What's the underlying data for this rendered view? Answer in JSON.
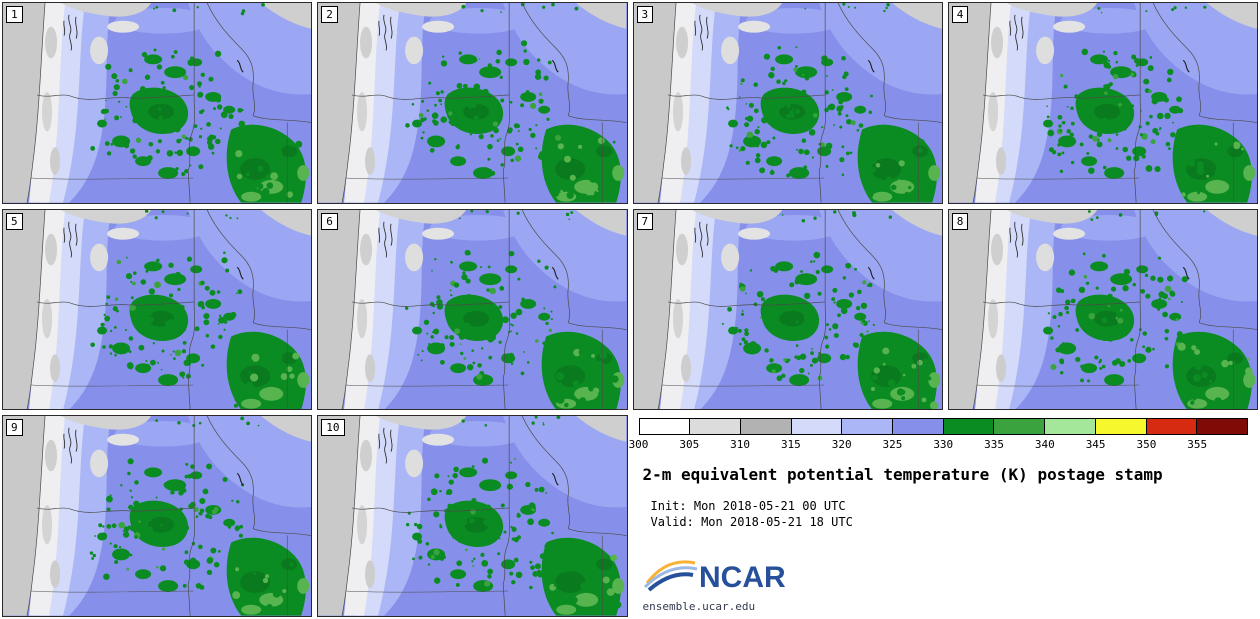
{
  "panels": [
    {
      "label": "1"
    },
    {
      "label": "2"
    },
    {
      "label": "3"
    },
    {
      "label": "4"
    },
    {
      "label": "5"
    },
    {
      "label": "6"
    },
    {
      "label": "7"
    },
    {
      "label": "8"
    },
    {
      "label": "9"
    },
    {
      "label": "10"
    }
  ],
  "legend": {
    "title": "2-m equivalent potential temperature (K) postage stamp",
    "init_line": "Init: Mon 2018-05-21 00 UTC",
    "valid_line": "Valid: Mon 2018-05-21 18 UTC",
    "colorbar": {
      "ticks": [
        "300",
        "305",
        "310",
        "315",
        "320",
        "325",
        "330",
        "335",
        "340",
        "345",
        "350",
        "355"
      ],
      "colors": [
        "#ffffff",
        "#dcdcdc",
        "#b2b2b2",
        "#d4daf9",
        "#aab6f5",
        "#8690ea",
        "#0b8c22",
        "#3aa33d",
        "#a5e79a",
        "#f7f72e",
        "#d62b10",
        "#7e0b06"
      ]
    }
  },
  "branding": {
    "logo_text": "NCAR",
    "site": "ensemble.ucar.edu"
  },
  "map_colors": {
    "field_main_blue": "#8690ea",
    "field_light_blue": "#aab6f5",
    "field_pale_lavender": "#d4daf9",
    "field_white": "#efeff2",
    "ocean_gray": "#c9c9c9",
    "green_main": "#0b8c22",
    "green_dark": "#097a1d",
    "green_light": "#58b44e"
  }
}
